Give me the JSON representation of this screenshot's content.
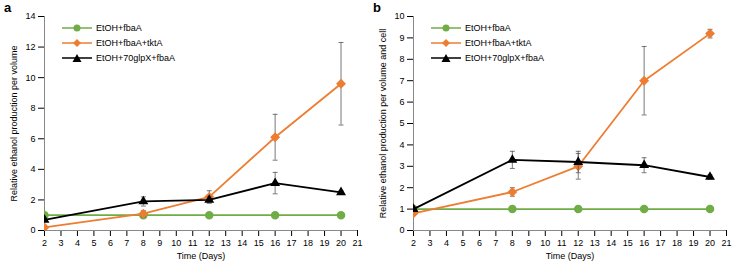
{
  "chart_data": [
    {
      "type": "line",
      "title": "a",
      "x_label": "Time (Days)",
      "y_label": "Relative ethanol production per volume",
      "x": [
        2,
        8,
        12,
        16,
        20
      ],
      "xlim": [
        2,
        21
      ],
      "xticks": [
        2,
        3,
        4,
        5,
        6,
        7,
        8,
        9,
        10,
        11,
        12,
        13,
        14,
        15,
        16,
        17,
        18,
        19,
        20,
        21
      ],
      "ylim": [
        0,
        14
      ],
      "yticks": [
        0,
        2,
        4,
        6,
        8,
        10,
        12,
        14
      ],
      "legend": "top-left",
      "series": [
        {
          "name": "EtOH+fbaA",
          "color": "#70AD47",
          "marker": "circle",
          "values": [
            1,
            1,
            1,
            1,
            1
          ],
          "errors": [
            0,
            0,
            0,
            0,
            0
          ]
        },
        {
          "name": "EtOH+fbaA+tktA",
          "color": "#ED7D31",
          "marker": "diamond",
          "values": [
            0.2,
            1.1,
            2.2,
            6.1,
            9.6
          ],
          "errors": [
            0.05,
            0.2,
            0.4,
            1.5,
            2.7
          ]
        },
        {
          "name": "EtOH+70glpX+fbaA",
          "color": "#000000",
          "marker": "triangle",
          "values": [
            0.7,
            1.9,
            2.0,
            3.1,
            2.5
          ],
          "errors": [
            0.1,
            0.3,
            0.2,
            0.7,
            0.1
          ]
        }
      ]
    },
    {
      "type": "line",
      "title": "b",
      "x_label": "Time (Days)",
      "y_label": "Relative ethanol production per volume and cell",
      "x": [
        2,
        8,
        12,
        16,
        20
      ],
      "xlim": [
        2,
        21
      ],
      "xticks": [
        2,
        3,
        4,
        5,
        6,
        7,
        8,
        9,
        10,
        11,
        12,
        13,
        14,
        15,
        16,
        17,
        18,
        19,
        20,
        21
      ],
      "ylim": [
        0,
        10
      ],
      "yticks": [
        0,
        1,
        2,
        3,
        4,
        5,
        6,
        7,
        8,
        9,
        10
      ],
      "legend": "top-left",
      "series": [
        {
          "name": "EtOH+fbaA",
          "color": "#70AD47",
          "marker": "circle",
          "values": [
            1,
            1,
            1,
            1,
            1
          ],
          "errors": [
            0,
            0,
            0,
            0,
            0
          ]
        },
        {
          "name": "EtOH+fbaA+tktA",
          "color": "#ED7D31",
          "marker": "diamond",
          "values": [
            0.8,
            1.8,
            3.0,
            7.0,
            9.2
          ],
          "errors": [
            0.1,
            0.2,
            0.6,
            1.6,
            0.2
          ]
        },
        {
          "name": "EtOH+70glpX+fbaA",
          "color": "#000000",
          "marker": "triangle",
          "values": [
            1.0,
            3.3,
            3.2,
            3.05,
            2.5
          ],
          "errors": [
            0.05,
            0.4,
            0.5,
            0.35,
            0.1
          ]
        }
      ]
    }
  ]
}
